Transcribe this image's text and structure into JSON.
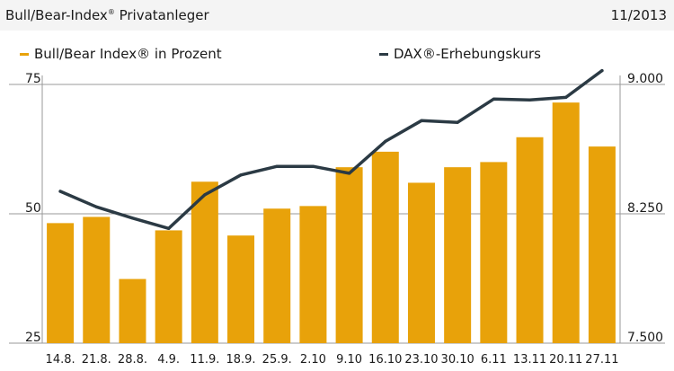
{
  "header": {
    "title": "Bull/Bear-Index",
    "title_mark": "®",
    "title_rest": " Privatanleger",
    "date": "11/2013"
  },
  "legend": {
    "bull_bear_label": "Bull/Bear Index® in Prozent",
    "dax_label": "DAX®-Erhebungskurs"
  },
  "colors": {
    "bar": "#e8a20a",
    "line": "#2b3a44",
    "grid": "#9a9a9a",
    "header_bg": "#f4f4f4"
  },
  "chart_data": {
    "type": "bar",
    "categories": [
      "14.8.",
      "21.8.",
      "28.8.",
      "4.9.",
      "11.9.",
      "18.9.",
      "25.9.",
      "2.10",
      "9.10",
      "16.10",
      "23.10",
      "30.10",
      "6.11",
      "13.11",
      "20.11",
      "27.11"
    ],
    "series": [
      {
        "name": "Bull/Bear Index® in Prozent",
        "type": "bar",
        "axis": "left",
        "values": [
          48.2,
          49.4,
          37.4,
          46.8,
          56.2,
          45.8,
          51.0,
          51.5,
          59.0,
          62.0,
          56.0,
          59.0,
          60.0,
          64.8,
          71.5,
          63.0
        ]
      },
      {
        "name": "DAX®-Erhebungskurs",
        "type": "line",
        "axis": "right",
        "values": [
          8380,
          8290,
          8225,
          8165,
          8360,
          8475,
          8525,
          8525,
          8485,
          8670,
          8790,
          8780,
          8915,
          8910,
          8925,
          9080
        ]
      }
    ],
    "left_axis": {
      "ticks": [
        "25",
        "50",
        "75"
      ],
      "ylim": [
        25,
        75
      ]
    },
    "right_axis": {
      "ticks": [
        "7.500",
        "8.250",
        "9.000"
      ],
      "ylim": [
        7500,
        9000
      ]
    },
    "legend_position": "top"
  }
}
